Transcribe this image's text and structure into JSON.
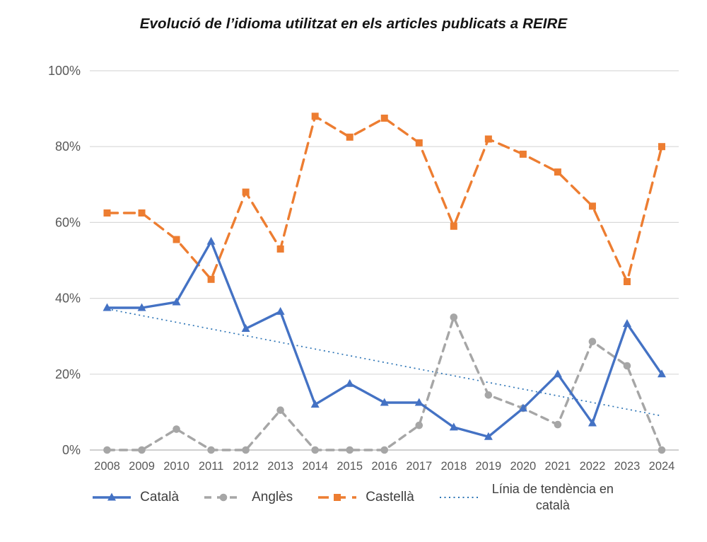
{
  "title": "Evolució de l’idioma utilitzat en els articles publicats a REIRE",
  "chart_data": {
    "type": "line",
    "categories": [
      "2008",
      "2009",
      "2010",
      "2011",
      "2012",
      "2013",
      "2014",
      "2015",
      "2016",
      "2017",
      "2018",
      "2019",
      "2020",
      "2021",
      "2022",
      "2023",
      "2024"
    ],
    "ylim": [
      0,
      100
    ],
    "y_ticks": [
      {
        "value": 0,
        "label": "0%"
      },
      {
        "value": 20,
        "label": "20%"
      },
      {
        "value": 40,
        "label": "40%"
      },
      {
        "value": 60,
        "label": "60%"
      },
      {
        "value": 80,
        "label": "80%"
      },
      {
        "value": 100,
        "label": "100%"
      }
    ],
    "grid": true,
    "legend_position": "bottom",
    "series": [
      {
        "name": "Català",
        "color": "#4472C4",
        "marker": "triangle",
        "line_style": "solid",
        "values": [
          37.5,
          37.5,
          39,
          55,
          32,
          36.5,
          12,
          17.5,
          12.5,
          12.5,
          6,
          3.5,
          11,
          20,
          7.1,
          33.3,
          20
        ]
      },
      {
        "name": "Anglès",
        "color": "#A6A6A6",
        "marker": "circle",
        "line_style": "dashed",
        "values": [
          0,
          0,
          5.5,
          0,
          0,
          10.5,
          0,
          0,
          0,
          6.5,
          35,
          14.5,
          11,
          6.7,
          28.6,
          22.2,
          0
        ]
      },
      {
        "name": "Castellà",
        "color": "#ED7D31",
        "marker": "square",
        "line_style": "long-dash",
        "values": [
          62.5,
          62.5,
          55.5,
          45,
          68,
          53,
          88,
          82.5,
          87.5,
          81,
          59,
          82,
          78,
          73.3,
          64.3,
          44.4,
          80
        ]
      }
    ],
    "trendline": {
      "name": "Línia de tendència en català",
      "color": "#2E75B6",
      "line_style": "dotted",
      "start": 37.2,
      "end": 9
    },
    "colors": {
      "gridline": "#D9D9D9",
      "axis_line": "#BFBFBF",
      "tick_text": "#595959",
      "legend_text": "#404040"
    }
  }
}
